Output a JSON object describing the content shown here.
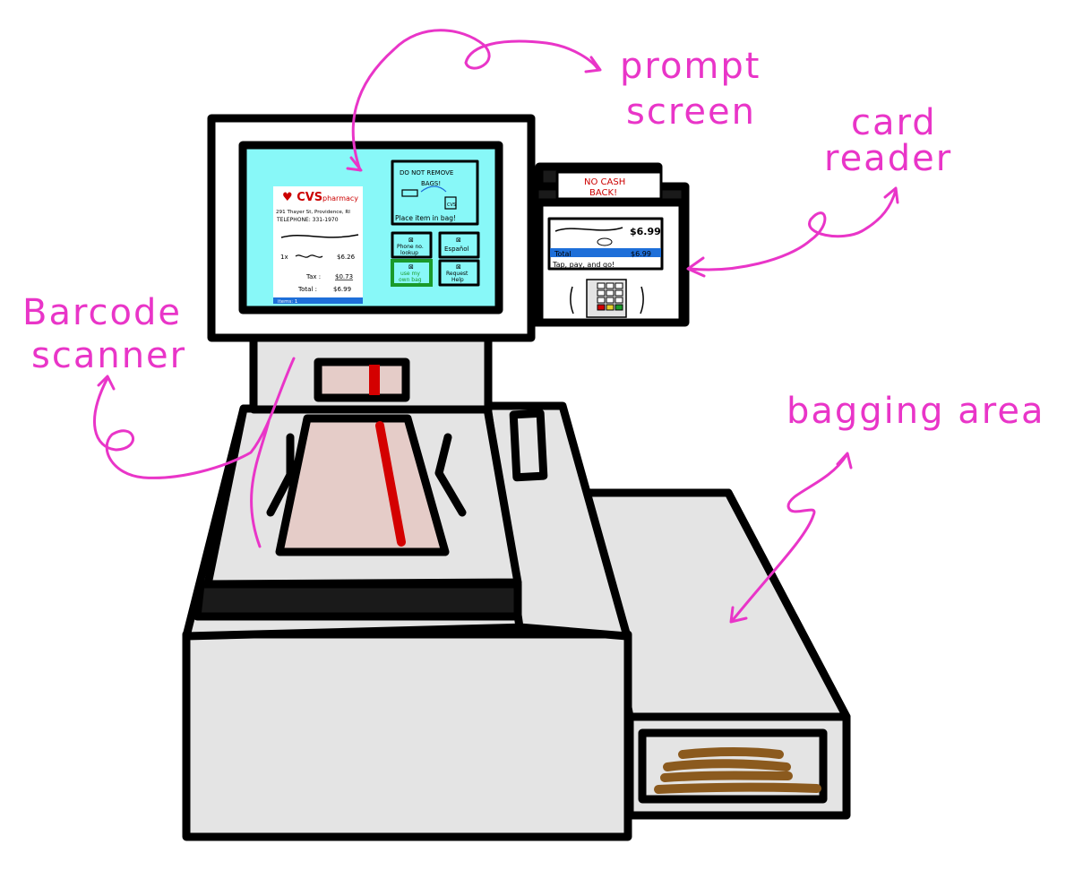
{
  "labels": {
    "prompt_screen_line1": "prompt",
    "prompt_screen_line2": "screen",
    "card_reader_line1": "card",
    "card_reader_line2": "reader",
    "barcode_scanner_line1": "Barcode",
    "barcode_scanner_line2": "scanner",
    "bagging_area": "bagging area"
  },
  "receipt": {
    "store_name": "CVS",
    "store_suffix": "pharmacy",
    "address": "291 Thayer St, Providence, RI",
    "telephone": "TELEPHONE: 331-1970",
    "qty": "1x",
    "item_price": "$6.26",
    "tax_label": "Tax :",
    "tax_value": "$0.73",
    "total_label": "Total :",
    "total_value": "$6.99",
    "items_label": "items: 1"
  },
  "prompt": {
    "warning_line1": "DO NOT REMOVE",
    "warning_line2": "BAGS!",
    "bag_logo": "CVS",
    "instruction": "Place item in bag!",
    "buttons": {
      "phone_line1": "Phone no.",
      "phone_line2": "lookup",
      "espanol": "Español",
      "own_bag_line1": "use my",
      "own_bag_line2": "own bag",
      "help_line1": "Request",
      "help_line2": "Help"
    }
  },
  "card_reader": {
    "sign_line1": "NO CASH",
    "sign_line2": "BACK!",
    "amount": "$6.99",
    "total_label": "Total",
    "total_value": "$6.99",
    "instruction": "Tap, pay, and go!"
  },
  "colors": {
    "annotation": "#e935c8",
    "screen": "#88f8f8",
    "machine_body": "#e4e4e4",
    "scanner_glass": "#e5ccc8",
    "laser": "#d40000",
    "brand_red": "#cc0000",
    "own_bag_border": "#1a9a2a",
    "total_bar": "#1e6fd9",
    "bags": "#8b5a1e"
  }
}
